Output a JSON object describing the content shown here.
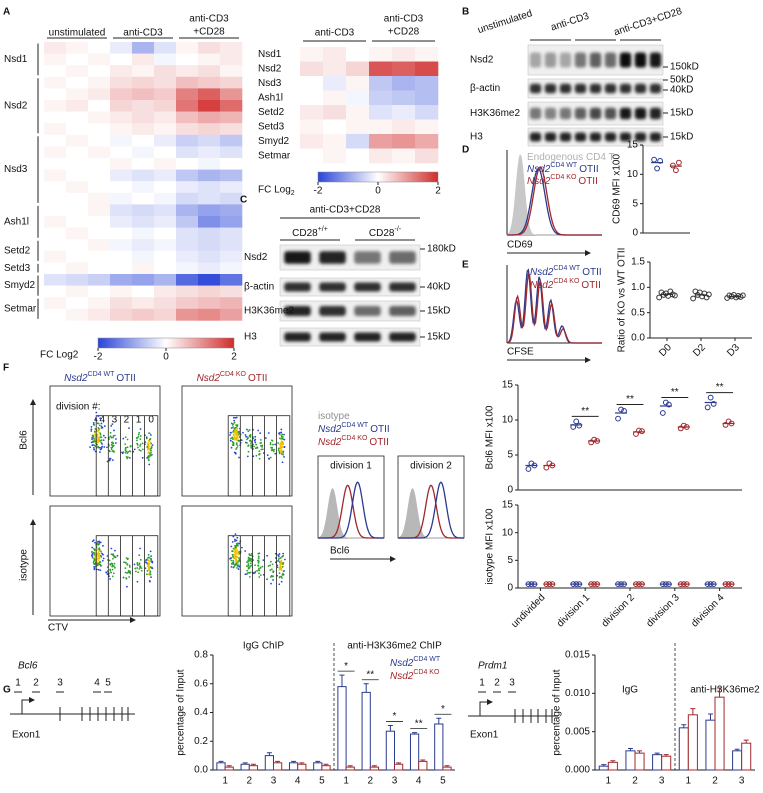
{
  "A": {
    "letter": "A",
    "left_heatmap": {
      "type": "heatmap",
      "column_groups": [
        [
          "unstimulated"
        ],
        [
          "anti-CD3"
        ],
        [
          "anti-CD3",
          "+CD28"
        ]
      ],
      "row_groups": [
        {
          "label": "Nsd1",
          "values": [
            [
              0.2,
              0.1,
              0,
              -0.2,
              -0.8,
              -0.3,
              0.1,
              0.3,
              0.2
            ],
            [
              0.1,
              0,
              0.1,
              0,
              0.2,
              -0.1,
              0,
              0.1,
              0.2
            ],
            [
              0,
              0.1,
              0,
              0.2,
              0.1,
              0.3,
              0.2,
              0.3,
              0.1
            ]
          ]
        },
        {
          "label": "Nsd2",
          "values": [
            [
              0.1,
              0,
              0.1,
              0.3,
              0.4,
              0.3,
              0.6,
              0.5,
              0.4
            ],
            [
              0,
              0.1,
              0.2,
              0.5,
              0.6,
              0.5,
              1.2,
              1.5,
              1.0
            ],
            [
              0.1,
              0.2,
              0,
              0.4,
              0.3,
              0.4,
              1.3,
              1.8,
              1.4
            ],
            [
              0,
              0,
              0.1,
              0.2,
              0.3,
              0.2,
              0.6,
              0.8,
              0.7
            ],
            [
              0.1,
              0,
              0,
              0.1,
              0.2,
              0.1,
              0.3,
              0.4,
              0.3
            ]
          ]
        },
        {
          "label": "Nsd3",
          "values": [
            [
              0,
              0.1,
              0,
              -0.1,
              0,
              -0.2,
              -0.5,
              -0.4,
              -0.6
            ],
            [
              0.1,
              0,
              0.1,
              0,
              -0.1,
              0,
              -0.3,
              -0.2,
              -0.3
            ],
            [
              0,
              0,
              0,
              0.1,
              0,
              0.1,
              0,
              -0.1,
              0
            ],
            [
              0.1,
              0,
              0,
              -0.2,
              -0.3,
              -0.2,
              -0.6,
              -0.8,
              -0.7
            ],
            [
              0,
              0.1,
              0,
              0,
              -0.1,
              0,
              -0.2,
              -0.3,
              -0.2
            ],
            [
              0,
              0,
              0.1,
              -0.1,
              0,
              -0.1,
              -0.4,
              -0.3,
              -0.4
            ]
          ]
        },
        {
          "label": "Ash1l",
          "values": [
            [
              0,
              0,
              0.1,
              -0.3,
              -0.4,
              -0.3,
              -0.8,
              -1.0,
              -0.9
            ],
            [
              0.1,
              0,
              0,
              -0.2,
              -0.3,
              -0.2,
              -0.6,
              -1.2,
              -1.0
            ],
            [
              0,
              0.1,
              0,
              0,
              -0.1,
              0,
              -0.3,
              -0.4,
              -0.3
            ]
          ]
        },
        {
          "label": "Setd2",
          "values": [
            [
              0,
              0,
              0.1,
              -0.1,
              -0.2,
              -0.1,
              -0.3,
              -0.4,
              -0.3
            ],
            [
              0.1,
              0,
              0,
              0,
              -0.1,
              0,
              -0.2,
              -0.3,
              -0.2
            ]
          ]
        },
        {
          "label": "Setd3",
          "values": [
            [
              0,
              0.1,
              0,
              0,
              0.1,
              0,
              -0.1,
              -0.2,
              -0.1
            ]
          ]
        },
        {
          "label": "Smyd2",
          "values": [
            [
              -0.3,
              -0.4,
              -0.5,
              -0.9,
              -1.0,
              -0.8,
              -1.6,
              -1.9,
              -1.5
            ],
            [
              0,
              0.1,
              0,
              0.1,
              0,
              0.2,
              0.3,
              0.4,
              0.3
            ]
          ]
        },
        {
          "label": "Setmar",
          "values": [
            [
              0.1,
              0,
              0.1,
              0.3,
              0.2,
              0.3,
              0.5,
              0.6,
              0.7
            ],
            [
              0,
              0.1,
              0.2,
              0.4,
              0.5,
              0.4,
              1.0,
              1.1,
              0.9
            ]
          ]
        }
      ],
      "colormap": [
        "#2b44d8",
        "#ffffff",
        "#d12b2b"
      ],
      "limits": [
        -2,
        2
      ],
      "colorbar": {
        "label": "FC Log2",
        "ticks": [
          -2,
          0,
          2
        ]
      }
    },
    "right_heatmap": {
      "type": "heatmap",
      "column_groups": [
        [
          "anti-CD3"
        ],
        [
          "anti-CD3",
          "+CD28"
        ]
      ],
      "rows": [
        "Nsd1",
        "Nsd2",
        "Nsd3",
        "Ash1l",
        "Setd2",
        "Setd3",
        "Smyd2",
        "Setmar"
      ],
      "values": [
        [
          0.1,
          0.2,
          0,
          0.1,
          0.2,
          0.1
        ],
        [
          0.3,
          0.2,
          0.4,
          1.6,
          1.5,
          1.7
        ],
        [
          0,
          -0.2,
          0.1,
          -0.6,
          -0.8,
          -0.7
        ],
        [
          0,
          0.1,
          -0.1,
          -0.5,
          -0.6,
          -0.7
        ],
        [
          0.2,
          0.3,
          0.1,
          -0.3,
          -0.2,
          -0.4
        ],
        [
          0.1,
          0,
          0.1,
          0.1,
          0.2,
          0.1
        ],
        [
          0.2,
          0.1,
          -0.4,
          0.9,
          1.0,
          0.8
        ],
        [
          0,
          0.1,
          0,
          0.2,
          0.1,
          0.3
        ]
      ],
      "colormap": [
        "#2b44d8",
        "#ffffff",
        "#d12b2b"
      ],
      "limits": [
        -2,
        2
      ],
      "colorbar": {
        "label": "FC Log",
        "label_sub": "2",
        "ticks": [
          -2,
          0,
          2
        ]
      }
    }
  },
  "B": {
    "letter": "B",
    "lanes": [
      "unstimulated",
      "anti-CD3",
      "anti-CD3+CD28"
    ],
    "rows": [
      "Nsd2",
      "β-actin",
      "H3K36me2",
      "H3"
    ],
    "markers": [
      "150kD",
      "50kD",
      "40kD",
      "15kD",
      "15kD"
    ]
  },
  "C": {
    "letter": "C",
    "treatment": "anti-CD3+CD28",
    "lanes": [
      {
        "text": "CD28",
        "sup": "+/+"
      },
      {
        "text": "CD28",
        "sup": "-/-"
      }
    ],
    "rows": [
      "Nsd2",
      "β-actin",
      "H3K36me2",
      "H3"
    ],
    "markers": [
      "180kD",
      "40kD",
      "15kD",
      "15kD"
    ]
  },
  "D": {
    "letter": "D",
    "histogram": {
      "legend": [
        {
          "text": "Endogenous CD4 T",
          "color": "#b0b0b0"
        },
        {
          "gene": "Nsd2",
          "sup": "CD4 WT",
          "suffix": "OTII",
          "color": "#2b3a8f"
        },
        {
          "gene": "Nsd2",
          "sup": "CD4 KO",
          "suffix": "OTII",
          "color": "#a0282d"
        }
      ],
      "xlabel": "CD69"
    },
    "chart": {
      "type": "scatter",
      "ylabel": "CD69 MFI x100",
      "ylim": [
        0,
        15
      ],
      "yticks": [
        0,
        5,
        10,
        15
      ],
      "series": [
        {
          "color": "#2b3a8f",
          "values": [
            12
          ],
          "points": [
            [
              12.5,
              11,
              12.3
            ]
          ]
        },
        {
          "color": "#a0282d",
          "values": [
            11.4
          ],
          "points": [
            [
              11.5,
              10.7,
              12
            ]
          ]
        }
      ]
    }
  },
  "E": {
    "letter": "E",
    "histogram": {
      "legend": [
        {
          "gene": "Nsd2",
          "sup": "CD4 WT",
          "suffix": "OTII",
          "color": "#2b3a8f"
        },
        {
          "gene": "Nsd2",
          "sup": "CD4 KO",
          "suffix": "OTII",
          "color": "#a0282d"
        }
      ],
      "xlabel": "CFSE"
    },
    "chart": {
      "type": "scatter",
      "ylabel": "Ratio of KO vs WT OTII",
      "ylim": [
        0,
        1.5
      ],
      "yticks": [
        {
          "value": 0,
          "label": "0.0"
        },
        0.5,
        {
          "value": 1,
          "label": "1.0"
        },
        1.5
      ],
      "categories": [
        "D0",
        "D2",
        "D3"
      ],
      "series": [
        {
          "color": "#333333",
          "values": [
            0.86,
            0.85,
            0.82
          ],
          "points": [
            [
              0.8,
              0.9,
              0.85,
              0.88,
              0.83,
              0.92,
              0.86,
              0.84
            ],
            [
              0.78,
              0.92,
              0.85,
              0.9,
              0.82,
              0.88,
              0.8,
              0.86
            ],
            [
              0.79,
              0.84,
              0.82,
              0.85,
              0.8,
              0.83,
              0.81,
              0.84
            ]
          ]
        }
      ]
    }
  },
  "F": {
    "letter": "F",
    "plot_headers": [
      {
        "gene": "Nsd2",
        "sup": "CD4 WT",
        "suffix": "OTII",
        "color": "#2b3a8f"
      },
      {
        "gene": "Nsd2",
        "sup": "CD4 KO",
        "suffix": "OTII",
        "color": "#a0282d"
      }
    ],
    "division_label": "division #:",
    "division_numbers": [
      "4",
      "3",
      "2",
      "1",
      "0"
    ],
    "y_labels": [
      "Bcl6",
      "isotype"
    ],
    "x_label": "CTV",
    "histogram": {
      "legend": [
        {
          "text": "isotype",
          "color": "#909090"
        },
        {
          "gene": "Nsd2",
          "sup": "CD4 WT",
          "suffix": "OTII",
          "color": "#2b3a8f"
        },
        {
          "gene": "Nsd2",
          "sup": "CD4 KO",
          "suffix": "OTII",
          "color": "#a0282d"
        }
      ],
      "panels": [
        "division 1",
        "division 2"
      ],
      "xlabel": "Bcl6"
    },
    "charts": [
      {
        "type": "scatter",
        "ylabel": "Bcl6 MFI x100",
        "ylim": [
          0,
          15
        ],
        "yticks": [
          0,
          5,
          10,
          15
        ],
        "significance": [
          null,
          "**",
          "**",
          "**",
          "**"
        ],
        "series": [
          {
            "color": "#2b3a8f",
            "values": [
              3.5,
              9.3,
              11,
              12,
              12.5
            ],
            "points": [
              [
                3,
                3.8,
                3.5
              ],
              [
                9,
                9.8,
                9.2
              ],
              [
                10.2,
                11.5,
                11.3
              ],
              [
                11,
                12.5,
                12.2
              ],
              [
                11.8,
                13.2,
                12.3
              ]
            ]
          },
          {
            "color": "#a0282d",
            "values": [
              3.5,
              7,
              8.3,
              9,
              9.5
            ],
            "points": [
              [
                3.2,
                3.8,
                3.5
              ],
              [
                6.8,
                7.2,
                7
              ],
              [
                8,
                8.5,
                8.4
              ],
              [
                8.8,
                9.2,
                9
              ],
              [
                9.3,
                9.8,
                9.5
              ]
            ]
          }
        ]
      },
      {
        "type": "scatter",
        "ylabel": "isotype MFI x100",
        "ylim": [
          0,
          15
        ],
        "yticks": [
          0,
          5,
          10,
          15
        ],
        "categories": [
          "undivided",
          "division 1",
          "division 2",
          "division 3",
          "division 4"
        ],
        "series": [
          {
            "color": "#2b3a8f",
            "values": [
              0.7,
              0.7,
              0.7,
              0.7,
              0.7
            ],
            "points": [
              [
                0.7,
                0.7,
                0.7
              ],
              [
                0.7,
                0.7,
                0.7
              ],
              [
                0.7,
                0.7,
                0.7
              ],
              [
                0.7,
                0.7,
                0.7
              ],
              [
                0.7,
                0.7,
                0.7
              ]
            ]
          },
          {
            "color": "#a0282d",
            "values": [
              0.7,
              0.7,
              0.7,
              0.7,
              0.7
            ],
            "points": [
              [
                0.7,
                0.7,
                0.7
              ],
              [
                0.7,
                0.7,
                0.7
              ],
              [
                0.7,
                0.7,
                0.7
              ],
              [
                0.7,
                0.7,
                0.7
              ],
              [
                0.7,
                0.7,
                0.7
              ]
            ]
          }
        ]
      }
    ]
  },
  "G": {
    "letter": "G",
    "bcl6_gene": {
      "name": "Bcl6",
      "primers": [
        "1",
        "2",
        "3",
        "4",
        "5"
      ],
      "exon": "Exon1"
    },
    "bcl6_chart": {
      "type": "bar",
      "ylabel": "percentage of Input",
      "ylim": [
        0,
        0.8
      ],
      "yticks": [
        {
          "value": 0,
          "label": "0.0"
        },
        0.2,
        0.4,
        0.6,
        0.8
      ],
      "group_titles": [
        "IgG ChIP",
        "anti-H3K36me2 ChIP"
      ],
      "categories": [
        "1",
        "2",
        "3",
        "4",
        "5",
        "1",
        "2",
        "3",
        "4",
        "5"
      ],
      "significance": [
        null,
        null,
        null,
        null,
        null,
        "*",
        "**",
        "*",
        "**",
        "*"
      ],
      "series": [
        {
          "name": "Nsd2",
          "name_sup": "CD4 WT",
          "color": "#2b3a8f",
          "values": [
            0.05,
            0.04,
            0.1,
            0.05,
            0.05,
            0.58,
            0.54,
            0.27,
            0.25,
            0.32
          ],
          "errors": [
            0.01,
            0.01,
            0.02,
            0.01,
            0.01,
            0.08,
            0.06,
            0.04,
            0.01,
            0.04
          ]
        },
        {
          "name": "Nsd2",
          "name_sup": "CD4 KO",
          "color": "#a0282d",
          "values": [
            0.02,
            0.03,
            0.05,
            0.04,
            0.03,
            0.02,
            0.02,
            0.04,
            0.06,
            0.02
          ],
          "errors": [
            0.01,
            0.01,
            0.01,
            0.01,
            0.01,
            0.01,
            0.01,
            0.01,
            0.01,
            0.01
          ]
        }
      ]
    },
    "prdm1_gene": {
      "name": "Prdm1",
      "primers": [
        "1",
        "2",
        "3"
      ],
      "exon": "Exon1"
    },
    "prdm1_chart": {
      "type": "bar",
      "ylabel": "percentage of Input",
      "ylim": [
        0,
        0.015
      ],
      "yticks": [
        {
          "value": 0,
          "label": "0.000"
        },
        0.005,
        {
          "value": 0.01,
          "label": "0.010"
        },
        0.015
      ],
      "group_titles": [
        "IgG",
        "anti-H3K36me2"
      ],
      "categories": [
        "1",
        "2",
        "3",
        "1",
        "2",
        "3"
      ],
      "series": [
        {
          "color": "#2b3a8f",
          "values": [
            0.0005,
            0.0025,
            0.002,
            0.0055,
            0.0065,
            0.0025
          ],
          "errors": [
            0.0002,
            0.0003,
            0.0002,
            0.0004,
            0.0008,
            0.0002
          ]
        },
        {
          "color": "#a0282d",
          "values": [
            0.001,
            0.0022,
            0.0018,
            0.0072,
            0.0095,
            0.0035
          ],
          "errors": [
            0.0002,
            0.0003,
            0.0002,
            0.0008,
            0.0012,
            0.0004
          ]
        }
      ]
    }
  }
}
